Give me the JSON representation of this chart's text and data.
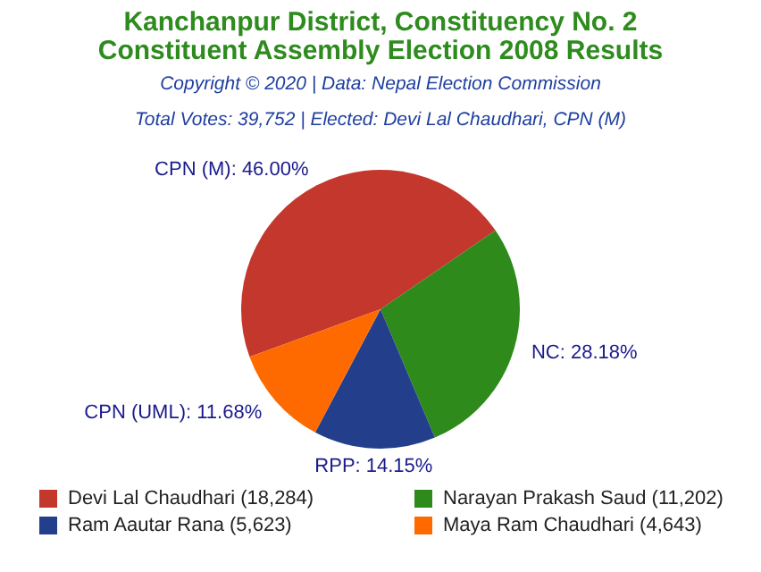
{
  "chart_data": {
    "type": "pie",
    "title": "Kanchanpur District, Constituency No. 2\nConstituent Assembly Election 2008 Results",
    "subtitle": "Copyright © 2020 | Data: Nepal Election Commission",
    "annotations": [
      "Total Votes: 39,752 | Elected: Devi Lal Chaudhari, CPN (M)"
    ],
    "categories": [
      "Devi Lal Chaudhari (18,284)",
      "Narayan Prakash Saud (11,202)",
      "Ram Aautar Rana (5,623)",
      "Maya Ram Chaudhari (4,643)"
    ],
    "values": [
      46.0,
      28.18,
      14.15,
      11.68
    ],
    "colors": [
      "#c4372c",
      "#2f8a1c",
      "#233f8c",
      "#ff6a00"
    ],
    "value_labels": [
      "CPN (M): 46.00%",
      "NC: 28.18%",
      "RPP: 14.15%",
      "CPN (UML): 11.68%"
    ],
    "legend": "bottom"
  }
}
